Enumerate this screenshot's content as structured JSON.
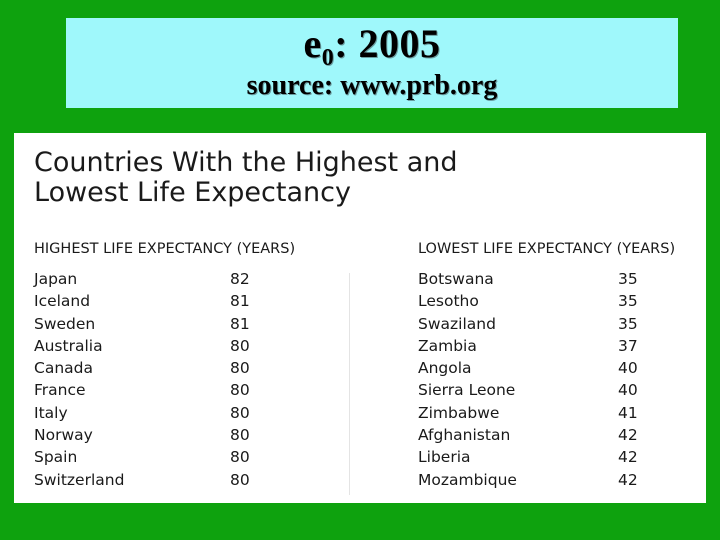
{
  "header": {
    "title_symbol": "e",
    "title_subscript": "0",
    "title_rest": ":  2005",
    "source": "source:  www.prb.org"
  },
  "panel": {
    "title_line1": "Countries With the Highest and",
    "title_line2": "Lowest Life Expectancy",
    "highest": {
      "header": "HIGHEST LIFE EXPECTANCY (YEARS)",
      "rows": [
        {
          "country": "Japan",
          "value": "82"
        },
        {
          "country": "Iceland",
          "value": "81"
        },
        {
          "country": "Sweden",
          "value": "81"
        },
        {
          "country": "Australia",
          "value": "80"
        },
        {
          "country": "Canada",
          "value": "80"
        },
        {
          "country": "France",
          "value": "80"
        },
        {
          "country": "Italy",
          "value": "80"
        },
        {
          "country": "Norway",
          "value": "80"
        },
        {
          "country": "Spain",
          "value": "80"
        },
        {
          "country": "Switzerland",
          "value": "80"
        }
      ]
    },
    "lowest": {
      "header": "LOWEST LIFE EXPECTANCY (YEARS)",
      "rows": [
        {
          "country": "Botswana",
          "value": "35"
        },
        {
          "country": "Lesotho",
          "value": "35"
        },
        {
          "country": "Swaziland",
          "value": "35"
        },
        {
          "country": "Zambia",
          "value": "37"
        },
        {
          "country": "Angola",
          "value": "40"
        },
        {
          "country": "Sierra Leone",
          "value": "40"
        },
        {
          "country": "Zimbabwe",
          "value": "41"
        },
        {
          "country": "Afghanistan",
          "value": "42"
        },
        {
          "country": "Liberia",
          "value": "42"
        },
        {
          "country": "Mozambique",
          "value": "42"
        }
      ]
    }
  },
  "colors": {
    "background_green": "#0ea20e",
    "title_box_cyan": "#9ff8fb",
    "panel_white": "#ffffff"
  }
}
